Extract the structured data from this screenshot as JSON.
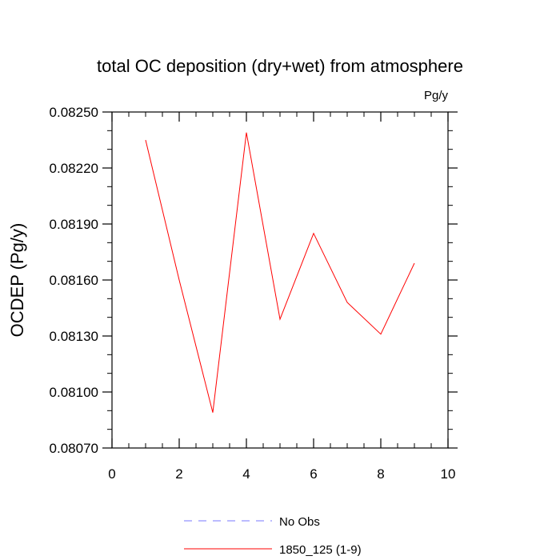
{
  "chart_data": {
    "type": "line",
    "title": "total OC deposition (dry+wet) from atmosphere",
    "units": "Pg/y",
    "ylabel": "OCDEP  (Pg/y)",
    "xlabel": "",
    "xlim": [
      0,
      10
    ],
    "ylim": [
      0.0807,
      0.0825
    ],
    "x_ticks": [
      "0",
      "2",
      "4",
      "6",
      "8",
      "10"
    ],
    "y_ticks": [
      "0.08250",
      "0.08220",
      "0.08190",
      "0.08160",
      "0.08130",
      "0.08100",
      "0.08070"
    ],
    "grid": false,
    "legend_position": "bottom",
    "series": [
      {
        "name": "1850_125 (1-9)",
        "color": "#ff0000",
        "style": "solid",
        "x": [
          1,
          2,
          3,
          4,
          5,
          6,
          7,
          8,
          9
        ],
        "y": [
          0.08235,
          0.0816,
          0.08089,
          0.08239,
          0.08139,
          0.08185,
          0.08148,
          0.08131,
          0.08169
        ]
      }
    ],
    "legend": [
      {
        "label": "No Obs",
        "color": "#7777ff",
        "style": "dashed"
      },
      {
        "label": "1850_125 (1-9)",
        "color": "#ff0000",
        "style": "solid"
      }
    ]
  }
}
